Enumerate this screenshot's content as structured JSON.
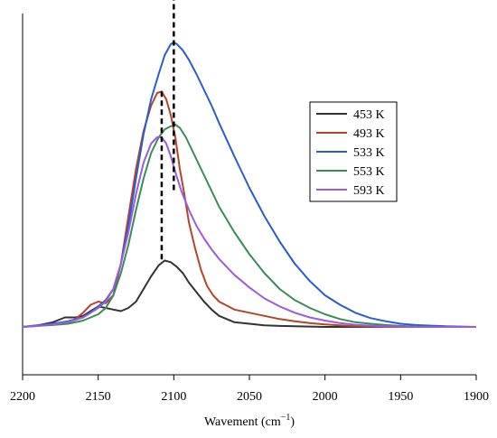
{
  "chart_data": {
    "type": "line",
    "title": "",
    "xlabel": "Wavement (cm",
    "xlabel_sup": "−1",
    "xlabel_close": ")",
    "ylabel": "",
    "xlim": [
      2200,
      1900
    ],
    "x_reversed": true,
    "ylim": [
      0,
      1
    ],
    "x_ticks": [
      "2200",
      "2150",
      "2100",
      "2050",
      "2000",
      "1950",
      "1900"
    ],
    "grid": false,
    "legend_position": "top-right",
    "series": [
      {
        "name": "453 K",
        "color": "#333333",
        "x": [
          2200,
          2190,
          2180,
          2172,
          2165,
          2160,
          2155,
          2150,
          2145,
          2140,
          2135,
          2130,
          2125,
          2120,
          2115,
          2110,
          2106,
          2102,
          2098,
          2094,
          2090,
          2085,
          2080,
          2075,
          2070,
          2065,
          2060,
          2050,
          2040,
          2030,
          2020,
          2000,
          1980,
          1960,
          1940,
          1920,
          1900
        ],
        "y": [
          0.0,
          0.005,
          0.015,
          0.03,
          0.03,
          0.035,
          0.05,
          0.065,
          0.06,
          0.055,
          0.05,
          0.06,
          0.08,
          0.12,
          0.16,
          0.195,
          0.21,
          0.205,
          0.19,
          0.17,
          0.14,
          0.11,
          0.08,
          0.055,
          0.035,
          0.025,
          0.015,
          0.01,
          0.005,
          0.003,
          0.002,
          0.0,
          0.0,
          0.0,
          0.0,
          0.0,
          0.0
        ]
      },
      {
        "name": "493 K",
        "color": "#b5442b",
        "x": [
          2200,
          2190,
          2180,
          2170,
          2165,
          2160,
          2155,
          2150,
          2145,
          2140,
          2135,
          2130,
          2125,
          2120,
          2115,
          2111,
          2108,
          2105,
          2102,
          2099,
          2096,
          2093,
          2090,
          2086,
          2082,
          2078,
          2074,
          2070,
          2060,
          2050,
          2040,
          2030,
          2020,
          2010,
          2000,
          1990,
          1980,
          1960,
          1940,
          1920,
          1900
        ],
        "y": [
          0.0,
          0.003,
          0.008,
          0.015,
          0.025,
          0.045,
          0.07,
          0.08,
          0.075,
          0.1,
          0.2,
          0.35,
          0.5,
          0.62,
          0.7,
          0.74,
          0.745,
          0.72,
          0.67,
          0.6,
          0.5,
          0.42,
          0.33,
          0.25,
          0.18,
          0.13,
          0.1,
          0.08,
          0.055,
          0.045,
          0.035,
          0.025,
          0.018,
          0.012,
          0.008,
          0.005,
          0.002,
          0.0,
          0.0,
          0.0,
          0.0
        ]
      },
      {
        "name": "533 K",
        "color": "#2a5bd1",
        "x": [
          2200,
          2190,
          2180,
          2170,
          2160,
          2155,
          2150,
          2145,
          2140,
          2135,
          2130,
          2125,
          2120,
          2115,
          2110,
          2106,
          2102,
          2100,
          2098,
          2094,
          2090,
          2085,
          2080,
          2075,
          2070,
          2060,
          2050,
          2040,
          2030,
          2020,
          2010,
          2000,
          1990,
          1980,
          1970,
          1960,
          1950,
          1940,
          1930,
          1920,
          1910,
          1900
        ],
        "y": [
          0.0,
          0.005,
          0.01,
          0.018,
          0.03,
          0.045,
          0.065,
          0.085,
          0.12,
          0.2,
          0.32,
          0.47,
          0.61,
          0.72,
          0.8,
          0.86,
          0.895,
          0.9,
          0.895,
          0.875,
          0.845,
          0.8,
          0.75,
          0.7,
          0.645,
          0.54,
          0.44,
          0.35,
          0.27,
          0.2,
          0.145,
          0.1,
          0.07,
          0.045,
          0.028,
          0.018,
          0.01,
          0.006,
          0.004,
          0.002,
          0.001,
          0.0
        ]
      },
      {
        "name": "553 K",
        "color": "#3a8b56",
        "x": [
          2200,
          2190,
          2180,
          2170,
          2160,
          2150,
          2145,
          2140,
          2135,
          2130,
          2125,
          2120,
          2115,
          2110,
          2106,
          2102,
          2099,
          2096,
          2092,
          2088,
          2084,
          2080,
          2075,
          2070,
          2060,
          2050,
          2040,
          2030,
          2020,
          2010,
          2000,
          1990,
          1980,
          1970,
          1960,
          1950,
          1940,
          1920,
          1900
        ],
        "y": [
          0.0,
          0.003,
          0.006,
          0.01,
          0.02,
          0.04,
          0.06,
          0.1,
          0.17,
          0.26,
          0.37,
          0.47,
          0.55,
          0.6,
          0.625,
          0.635,
          0.64,
          0.63,
          0.6,
          0.56,
          0.52,
          0.48,
          0.43,
          0.38,
          0.3,
          0.23,
          0.17,
          0.12,
          0.085,
          0.06,
          0.04,
          0.025,
          0.015,
          0.01,
          0.006,
          0.003,
          0.001,
          0.0,
          0.0
        ]
      },
      {
        "name": "593 K",
        "color": "#9a5be0",
        "x": [
          2200,
          2190,
          2180,
          2170,
          2160,
          2155,
          2150,
          2145,
          2140,
          2135,
          2130,
          2125,
          2120,
          2115,
          2111,
          2108,
          2105,
          2102,
          2099,
          2095,
          2090,
          2085,
          2080,
          2075,
          2070,
          2060,
          2050,
          2040,
          2030,
          2020,
          2010,
          2000,
          1990,
          1980,
          1970,
          1960,
          1950,
          1940,
          1920,
          1900
        ],
        "y": [
          0.0,
          0.003,
          0.008,
          0.015,
          0.03,
          0.045,
          0.06,
          0.08,
          0.12,
          0.2,
          0.3,
          0.42,
          0.52,
          0.58,
          0.6,
          0.6,
          0.58,
          0.54,
          0.49,
          0.43,
          0.37,
          0.32,
          0.28,
          0.245,
          0.215,
          0.165,
          0.125,
          0.09,
          0.065,
          0.045,
          0.03,
          0.02,
          0.012,
          0.007,
          0.004,
          0.002,
          0.001,
          0.0,
          0.0,
          0.0
        ]
      }
    ],
    "reference_lines": [
      {
        "x": 2100,
        "y_from": 0.43,
        "y_to": 1.05,
        "style": "dashed",
        "color": "#000000"
      },
      {
        "x": 2108,
        "y_from": 0.21,
        "y_to": 0.745,
        "style": "dashed",
        "color": "#000000"
      }
    ]
  }
}
